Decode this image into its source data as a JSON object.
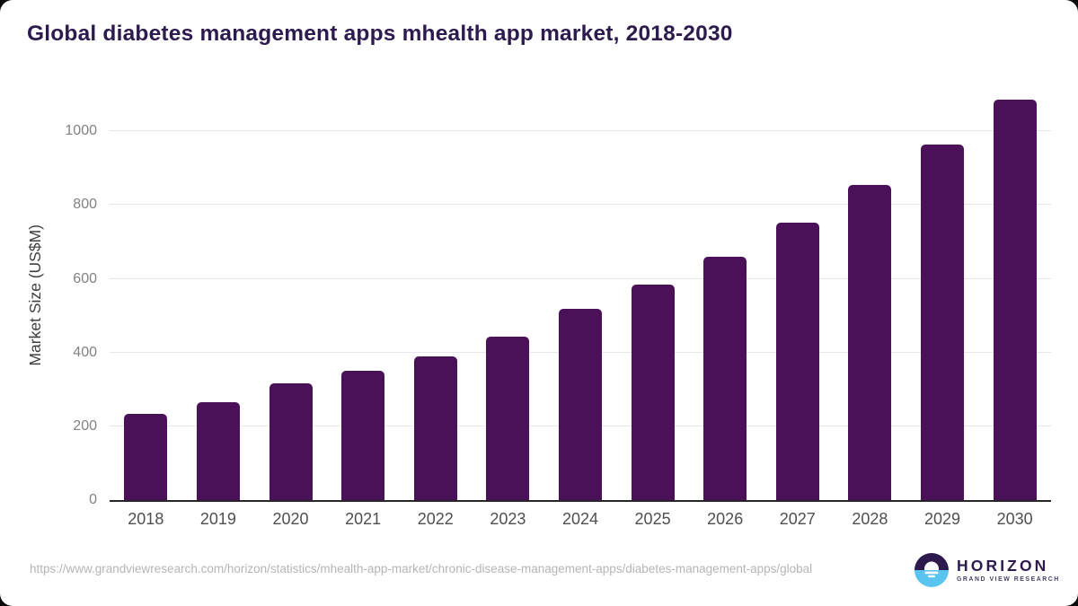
{
  "chart_data": {
    "type": "bar",
    "title": "Global diabetes management apps mhealth app market, 2018-2030",
    "categories": [
      "2018",
      "2019",
      "2020",
      "2021",
      "2022",
      "2023",
      "2024",
      "2025",
      "2026",
      "2027",
      "2028",
      "2029",
      "2030"
    ],
    "values": [
      234,
      265,
      316,
      350,
      389,
      442,
      518,
      583,
      660,
      751,
      854,
      965,
      1085
    ],
    "xlabel": "",
    "ylabel": "Market Size (US$M)",
    "yticks": [
      0,
      200,
      400,
      600,
      800,
      1000
    ],
    "ylim": [
      0,
      1110
    ],
    "grid": true,
    "legend": false,
    "bar_color": "#4a1158",
    "axis_line_color": "#262626",
    "gridline_color": "#e7e7e7",
    "title_color": "#2d1b4e"
  },
  "footer": {
    "source_url": "https://www.grandviewresearch.com/horizon/statistics/mhealth-app-market/chronic-disease-management-apps/diabetes-management-apps/global",
    "logo": {
      "name": "HORIZON",
      "tagline": "GRAND VIEW RESEARCH",
      "purple": "#2d1b4e",
      "blue": "#5ac4f0"
    }
  }
}
